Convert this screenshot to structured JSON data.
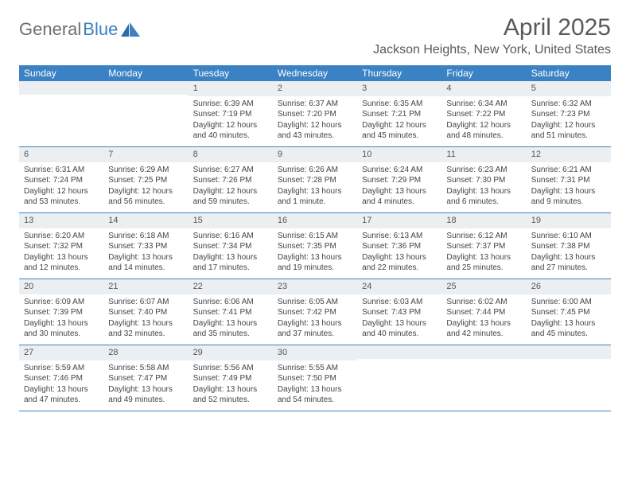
{
  "logo": {
    "part1": "General",
    "part2": "Blue"
  },
  "title": "April 2025",
  "location": "Jackson Heights, New York, United States",
  "colors": {
    "header_bg": "#3b82c4",
    "header_text": "#ffffff",
    "daynum_bg": "#eceff1",
    "body_text": "#444444",
    "title_text": "#5a5a5a",
    "border": "#3b82c4"
  },
  "day_names": [
    "Sunday",
    "Monday",
    "Tuesday",
    "Wednesday",
    "Thursday",
    "Friday",
    "Saturday"
  ],
  "weeks": [
    [
      {
        "n": "",
        "sr": "",
        "ss": "",
        "dl": ""
      },
      {
        "n": "",
        "sr": "",
        "ss": "",
        "dl": ""
      },
      {
        "n": "1",
        "sr": "Sunrise: 6:39 AM",
        "ss": "Sunset: 7:19 PM",
        "dl": "Daylight: 12 hours and 40 minutes."
      },
      {
        "n": "2",
        "sr": "Sunrise: 6:37 AM",
        "ss": "Sunset: 7:20 PM",
        "dl": "Daylight: 12 hours and 43 minutes."
      },
      {
        "n": "3",
        "sr": "Sunrise: 6:35 AM",
        "ss": "Sunset: 7:21 PM",
        "dl": "Daylight: 12 hours and 45 minutes."
      },
      {
        "n": "4",
        "sr": "Sunrise: 6:34 AM",
        "ss": "Sunset: 7:22 PM",
        "dl": "Daylight: 12 hours and 48 minutes."
      },
      {
        "n": "5",
        "sr": "Sunrise: 6:32 AM",
        "ss": "Sunset: 7:23 PM",
        "dl": "Daylight: 12 hours and 51 minutes."
      }
    ],
    [
      {
        "n": "6",
        "sr": "Sunrise: 6:31 AM",
        "ss": "Sunset: 7:24 PM",
        "dl": "Daylight: 12 hours and 53 minutes."
      },
      {
        "n": "7",
        "sr": "Sunrise: 6:29 AM",
        "ss": "Sunset: 7:25 PM",
        "dl": "Daylight: 12 hours and 56 minutes."
      },
      {
        "n": "8",
        "sr": "Sunrise: 6:27 AM",
        "ss": "Sunset: 7:26 PM",
        "dl": "Daylight: 12 hours and 59 minutes."
      },
      {
        "n": "9",
        "sr": "Sunrise: 6:26 AM",
        "ss": "Sunset: 7:28 PM",
        "dl": "Daylight: 13 hours and 1 minute."
      },
      {
        "n": "10",
        "sr": "Sunrise: 6:24 AM",
        "ss": "Sunset: 7:29 PM",
        "dl": "Daylight: 13 hours and 4 minutes."
      },
      {
        "n": "11",
        "sr": "Sunrise: 6:23 AM",
        "ss": "Sunset: 7:30 PM",
        "dl": "Daylight: 13 hours and 6 minutes."
      },
      {
        "n": "12",
        "sr": "Sunrise: 6:21 AM",
        "ss": "Sunset: 7:31 PM",
        "dl": "Daylight: 13 hours and 9 minutes."
      }
    ],
    [
      {
        "n": "13",
        "sr": "Sunrise: 6:20 AM",
        "ss": "Sunset: 7:32 PM",
        "dl": "Daylight: 13 hours and 12 minutes."
      },
      {
        "n": "14",
        "sr": "Sunrise: 6:18 AM",
        "ss": "Sunset: 7:33 PM",
        "dl": "Daylight: 13 hours and 14 minutes."
      },
      {
        "n": "15",
        "sr": "Sunrise: 6:16 AM",
        "ss": "Sunset: 7:34 PM",
        "dl": "Daylight: 13 hours and 17 minutes."
      },
      {
        "n": "16",
        "sr": "Sunrise: 6:15 AM",
        "ss": "Sunset: 7:35 PM",
        "dl": "Daylight: 13 hours and 19 minutes."
      },
      {
        "n": "17",
        "sr": "Sunrise: 6:13 AM",
        "ss": "Sunset: 7:36 PM",
        "dl": "Daylight: 13 hours and 22 minutes."
      },
      {
        "n": "18",
        "sr": "Sunrise: 6:12 AM",
        "ss": "Sunset: 7:37 PM",
        "dl": "Daylight: 13 hours and 25 minutes."
      },
      {
        "n": "19",
        "sr": "Sunrise: 6:10 AM",
        "ss": "Sunset: 7:38 PM",
        "dl": "Daylight: 13 hours and 27 minutes."
      }
    ],
    [
      {
        "n": "20",
        "sr": "Sunrise: 6:09 AM",
        "ss": "Sunset: 7:39 PM",
        "dl": "Daylight: 13 hours and 30 minutes."
      },
      {
        "n": "21",
        "sr": "Sunrise: 6:07 AM",
        "ss": "Sunset: 7:40 PM",
        "dl": "Daylight: 13 hours and 32 minutes."
      },
      {
        "n": "22",
        "sr": "Sunrise: 6:06 AM",
        "ss": "Sunset: 7:41 PM",
        "dl": "Daylight: 13 hours and 35 minutes."
      },
      {
        "n": "23",
        "sr": "Sunrise: 6:05 AM",
        "ss": "Sunset: 7:42 PM",
        "dl": "Daylight: 13 hours and 37 minutes."
      },
      {
        "n": "24",
        "sr": "Sunrise: 6:03 AM",
        "ss": "Sunset: 7:43 PM",
        "dl": "Daylight: 13 hours and 40 minutes."
      },
      {
        "n": "25",
        "sr": "Sunrise: 6:02 AM",
        "ss": "Sunset: 7:44 PM",
        "dl": "Daylight: 13 hours and 42 minutes."
      },
      {
        "n": "26",
        "sr": "Sunrise: 6:00 AM",
        "ss": "Sunset: 7:45 PM",
        "dl": "Daylight: 13 hours and 45 minutes."
      }
    ],
    [
      {
        "n": "27",
        "sr": "Sunrise: 5:59 AM",
        "ss": "Sunset: 7:46 PM",
        "dl": "Daylight: 13 hours and 47 minutes."
      },
      {
        "n": "28",
        "sr": "Sunrise: 5:58 AM",
        "ss": "Sunset: 7:47 PM",
        "dl": "Daylight: 13 hours and 49 minutes."
      },
      {
        "n": "29",
        "sr": "Sunrise: 5:56 AM",
        "ss": "Sunset: 7:49 PM",
        "dl": "Daylight: 13 hours and 52 minutes."
      },
      {
        "n": "30",
        "sr": "Sunrise: 5:55 AM",
        "ss": "Sunset: 7:50 PM",
        "dl": "Daylight: 13 hours and 54 minutes."
      },
      {
        "n": "",
        "sr": "",
        "ss": "",
        "dl": ""
      },
      {
        "n": "",
        "sr": "",
        "ss": "",
        "dl": ""
      },
      {
        "n": "",
        "sr": "",
        "ss": "",
        "dl": ""
      }
    ]
  ]
}
